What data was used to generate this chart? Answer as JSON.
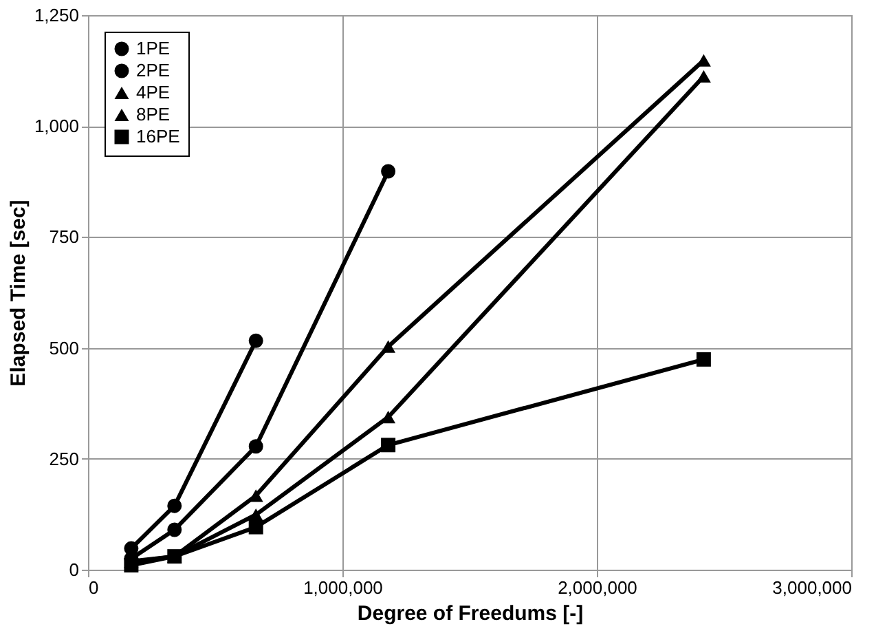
{
  "chart_data": {
    "type": "line",
    "xlabel": "Degree of Freedums [-]",
    "ylabel": "Elapsed Time [sec]",
    "xlim": [
      0,
      3000000
    ],
    "xticks": [
      {
        "value": 0,
        "label": "0"
      },
      {
        "value": 1000000,
        "label": "1,000,000"
      },
      {
        "value": 2000000,
        "label": "2,000,000"
      },
      {
        "value": 3000000,
        "label": "3,000,000"
      }
    ],
    "ylim": [
      0,
      1250
    ],
    "yticks": [
      {
        "value": 0,
        "label": "0"
      },
      {
        "value": 250,
        "label": "250"
      },
      {
        "value": 500,
        "label": "500"
      },
      {
        "value": 750,
        "label": "750"
      },
      {
        "value": 1000,
        "label": "1,000"
      },
      {
        "value": 1250,
        "label": "1,250"
      }
    ],
    "grid": true,
    "legend": "top left",
    "line_style": "solid",
    "series": [
      {
        "name": "1PE",
        "color": "#000000",
        "marker": "circle",
        "x": [
          170000,
          340000,
          660000
        ],
        "values": [
          48,
          144,
          516
        ]
      },
      {
        "name": "2PE",
        "color": "#000000",
        "marker": "circle",
        "x": [
          170000,
          340000,
          660000,
          1180000
        ],
        "values": [
          25,
          90,
          278,
          898
        ]
      },
      {
        "name": "4PE",
        "color": "#000000",
        "marker": "triangle",
        "x": [
          170000,
          340000,
          660000,
          1180000,
          2420000
        ],
        "values": [
          19,
          30,
          167,
          503,
          1148
        ]
      },
      {
        "name": "8PE",
        "color": "#000000",
        "marker": "triangle",
        "x": [
          170000,
          340000,
          660000,
          1180000,
          2420000
        ],
        "values": [
          17,
          30,
          124,
          344,
          1112
        ]
      },
      {
        "name": "16PE",
        "color": "#000000",
        "marker": "square",
        "x": [
          170000,
          340000,
          660000,
          1180000,
          2420000
        ],
        "values": [
          10,
          30,
          96,
          281,
          474
        ]
      }
    ]
  }
}
